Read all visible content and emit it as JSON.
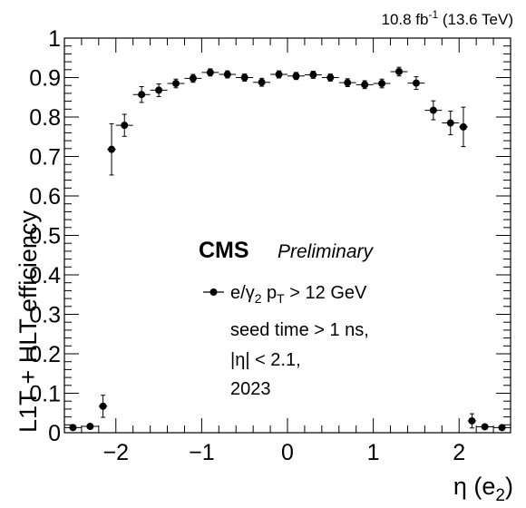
{
  "header": {
    "lumi_prefix": "10.8 fb",
    "lumi_exp": "-1",
    "lumi_suffix": " (13.6 TeV)"
  },
  "labels": {
    "cms": "CMS",
    "preliminary": "Preliminary",
    "legend_line1_a": "e/",
    "legend_line1_gamma": "γ",
    "legend_line1_sub2": "2",
    "legend_line1_p": " p",
    "legend_line1_subT": "T",
    "legend_line1_b": " > 12 GeV",
    "legend_line2": "seed time > 1 ns,",
    "legend_line3": "|η| < 2.1,",
    "legend_line4": "2023",
    "ylabel": "L1T + HLT efficiency",
    "xlabel_main": "η (e",
    "xlabel_sub": "2",
    "xlabel_close": ")"
  },
  "chart_data": {
    "type": "scatter",
    "title": "",
    "xlabel": "η (e2)",
    "ylabel": "L1T + HLT efficiency",
    "xlim": [
      -2.6,
      2.6
    ],
    "ylim": [
      0,
      1
    ],
    "xticks": [
      -2,
      -1,
      0,
      1,
      2
    ],
    "xtick_labels": [
      "−2",
      "−1",
      "0",
      "1",
      "2"
    ],
    "yticks": [
      0,
      0.1,
      0.2,
      0.3,
      0.4,
      0.5,
      0.6,
      0.7,
      0.8,
      0.9,
      1
    ],
    "ytick_labels": [
      "0",
      "0.1",
      "0.2",
      "0.3",
      "0.4",
      "0.5",
      "0.6",
      "0.7",
      "0.8",
      "0.9",
      "1"
    ],
    "grid": false,
    "marker_color": "#000000",
    "series": [
      {
        "points": [
          {
            "x": -2.5,
            "xerr": 0.1,
            "y": 0.013,
            "yerr": 0.004
          },
          {
            "x": -2.3,
            "xerr": 0.1,
            "y": 0.016,
            "yerr": 0.005
          },
          {
            "x": -2.15,
            "xerr": 0.05,
            "y": 0.067,
            "yerr": 0.028
          },
          {
            "x": -2.05,
            "xerr": 0.05,
            "y": 0.718,
            "yerr": 0.065
          },
          {
            "x": -1.9,
            "xerr": 0.1,
            "y": 0.779,
            "yerr": 0.028
          },
          {
            "x": -1.7,
            "xerr": 0.1,
            "y": 0.857,
            "yerr": 0.02
          },
          {
            "x": -1.5,
            "xerr": 0.1,
            "y": 0.868,
            "yerr": 0.016
          },
          {
            "x": -1.3,
            "xerr": 0.1,
            "y": 0.885,
            "yerr": 0.011
          },
          {
            "x": -1.1,
            "xerr": 0.1,
            "y": 0.898,
            "yerr": 0.01
          },
          {
            "x": -0.9,
            "xerr": 0.1,
            "y": 0.913,
            "yerr": 0.009
          },
          {
            "x": -0.7,
            "xerr": 0.1,
            "y": 0.908,
            "yerr": 0.009
          },
          {
            "x": -0.5,
            "xerr": 0.1,
            "y": 0.9,
            "yerr": 0.009
          },
          {
            "x": -0.3,
            "xerr": 0.1,
            "y": 0.888,
            "yerr": 0.01
          },
          {
            "x": -0.1,
            "xerr": 0.1,
            "y": 0.908,
            "yerr": 0.009
          },
          {
            "x": 0.1,
            "xerr": 0.1,
            "y": 0.904,
            "yerr": 0.009
          },
          {
            "x": 0.3,
            "xerr": 0.1,
            "y": 0.907,
            "yerr": 0.009
          },
          {
            "x": 0.5,
            "xerr": 0.1,
            "y": 0.9,
            "yerr": 0.009
          },
          {
            "x": 0.7,
            "xerr": 0.1,
            "y": 0.887,
            "yerr": 0.01
          },
          {
            "x": 0.9,
            "xerr": 0.1,
            "y": 0.882,
            "yerr": 0.01
          },
          {
            "x": 1.1,
            "xerr": 0.1,
            "y": 0.885,
            "yerr": 0.011
          },
          {
            "x": 1.3,
            "xerr": 0.1,
            "y": 0.915,
            "yerr": 0.011
          },
          {
            "x": 1.5,
            "xerr": 0.1,
            "y": 0.886,
            "yerr": 0.016
          },
          {
            "x": 1.7,
            "xerr": 0.1,
            "y": 0.817,
            "yerr": 0.024
          },
          {
            "x": 1.9,
            "xerr": 0.1,
            "y": 0.785,
            "yerr": 0.03
          },
          {
            "x": 2.05,
            "xerr": 0.05,
            "y": 0.775,
            "yerr": 0.05
          },
          {
            "x": 2.15,
            "xerr": 0.05,
            "y": 0.03,
            "yerr": 0.018
          },
          {
            "x": 2.3,
            "xerr": 0.1,
            "y": 0.015,
            "yerr": 0.005
          },
          {
            "x": 2.5,
            "xerr": 0.1,
            "y": 0.013,
            "yerr": 0.004
          }
        ]
      }
    ]
  }
}
